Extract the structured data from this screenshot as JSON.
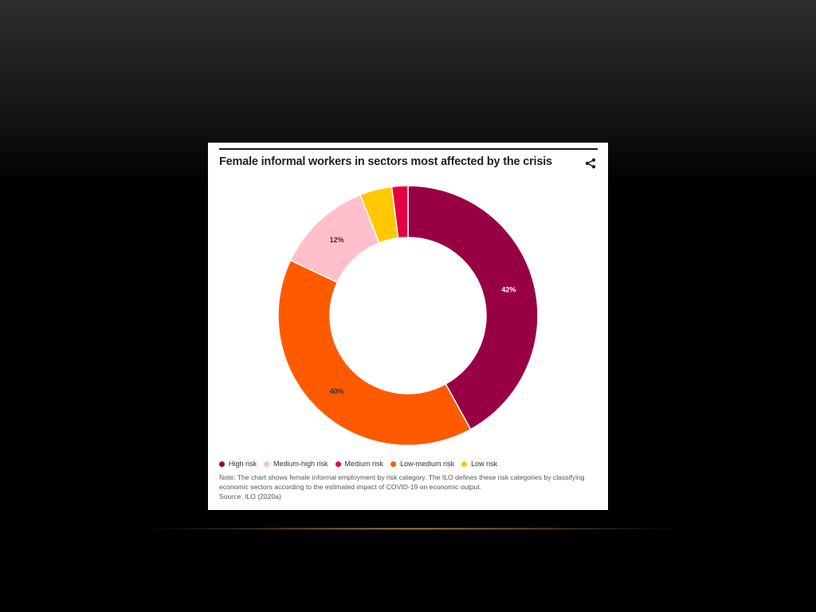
{
  "card": {
    "title": "Female informal workers in sectors most affected by the crisis",
    "share_icon": "share-icon",
    "note": "Note: The chart shows female informal employment by risk category. The ILO defines these risk categories by classifying economic sectors according to the estimated impact of COVID-19 on economic output.",
    "source": "Source: ILO (2020a)"
  },
  "chart_data": {
    "type": "pie",
    "donut": true,
    "categories": [
      "High risk",
      "Medium-high risk",
      "Medium risk",
      "Low-medium risk",
      "Low risk"
    ],
    "values": [
      42,
      12,
      2,
      40,
      4
    ],
    "series": [
      {
        "name": "High risk",
        "value": 42,
        "label": "42%",
        "color": "#990044"
      },
      {
        "name": "Low-medium risk",
        "value": 40,
        "label": "40%",
        "color": "#ff5a00"
      },
      {
        "name": "Medium-high risk",
        "value": 12,
        "label": "12%",
        "color": "#ffc0cb"
      },
      {
        "name": "Low risk",
        "value": 4,
        "label": "",
        "color": "#ffc800"
      },
      {
        "name": "Medium risk",
        "value": 2,
        "label": "",
        "color": "#e60042"
      }
    ],
    "legend": [
      {
        "name": "High risk",
        "color": "#990044"
      },
      {
        "name": "Medium-high risk",
        "color": "#ffc0cb"
      },
      {
        "name": "Medium risk",
        "color": "#e60042"
      },
      {
        "name": "Low-medium risk",
        "color": "#ff5a00"
      },
      {
        "name": "Low risk",
        "color": "#ffc800"
      }
    ],
    "legend_position": "bottom-left",
    "title": "Female informal workers in sectors most affected by the crisis"
  }
}
